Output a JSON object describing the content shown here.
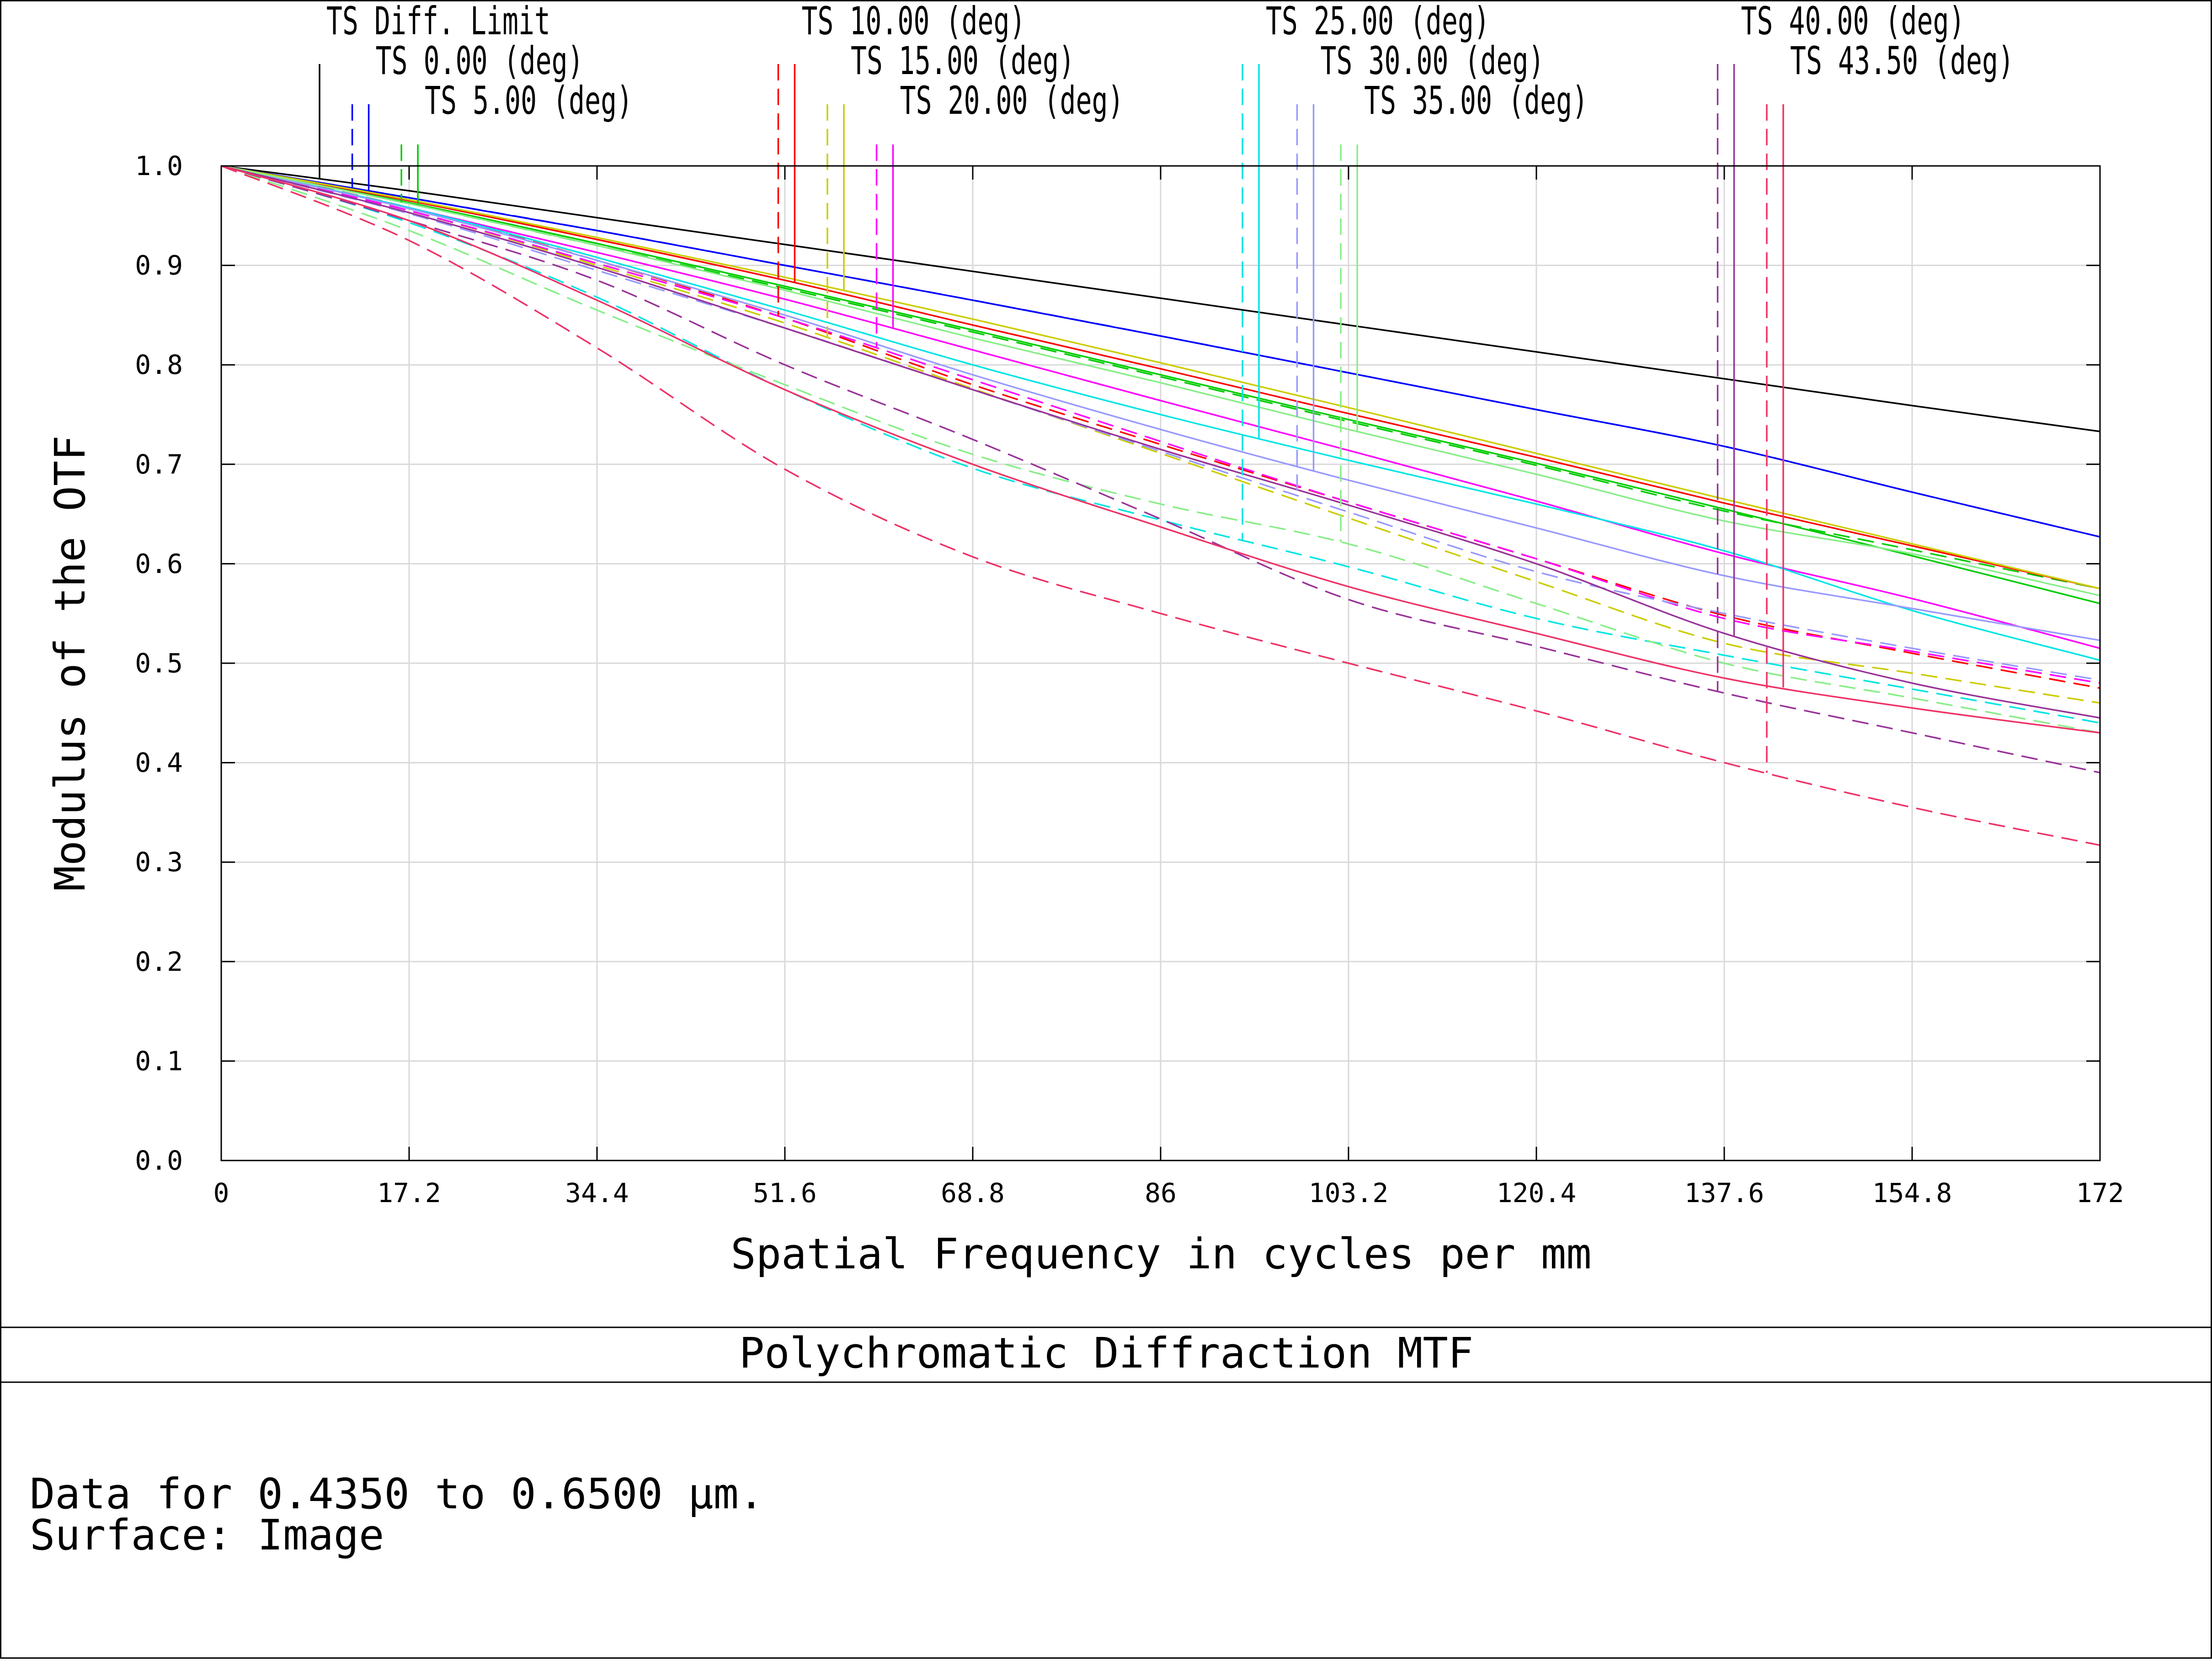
{
  "chart_data": {
    "type": "line",
    "title": "Polychromatic Diffraction MTF",
    "xlabel": "Spatial Frequency in cycles per mm",
    "ylabel": "Modulus of the OTF",
    "xlim": [
      0,
      172
    ],
    "ylim": [
      0,
      1.0
    ],
    "xticks": [
      "0",
      "17.2",
      "34.4",
      "51.6",
      "68.8",
      "86",
      "103.2",
      "120.4",
      "137.6",
      "154.8",
      "172"
    ],
    "yticks": [
      "0.0",
      "0.1",
      "0.2",
      "0.3",
      "0.4",
      "0.5",
      "0.6",
      "0.7",
      "0.8",
      "0.9",
      "1.0"
    ],
    "grid": true,
    "legend_placement": "top",
    "info_lines": [
      "Data for 0.4350 to 0.6500 µm.",
      "Surface: Image"
    ],
    "x": [
      0,
      17.2,
      34.4,
      51.6,
      68.8,
      86,
      103.2,
      120.4,
      137.6,
      154.8,
      172
    ],
    "series": [
      {
        "name": "TS Diff. Limit",
        "color": "#000000",
        "marker_x": 9,
        "tangential": [
          1.0,
          0.975,
          0.948,
          0.921,
          0.894,
          0.867,
          0.84,
          0.813,
          0.786,
          0.759,
          0.733
        ],
        "sagittal": null
      },
      {
        "name": "TS 0.00 (deg)",
        "color": "#0000ff",
        "marker_x": 13.5,
        "tangential": [
          1.0,
          0.968,
          0.935,
          0.9,
          0.865,
          0.829,
          0.792,
          0.755,
          0.718,
          0.672,
          0.627
        ],
        "sagittal": [
          1.0,
          0.968,
          0.935,
          0.9,
          0.865,
          0.829,
          0.792,
          0.755,
          0.718,
          0.672,
          0.627
        ]
      },
      {
        "name": "TS 5.00 (deg)",
        "color": "#00cc00",
        "marker_x": 18,
        "tangential": [
          1.0,
          0.963,
          0.922,
          0.879,
          0.835,
          0.79,
          0.745,
          0.701,
          0.655,
          0.608,
          0.56
        ],
        "sagittal": [
          1.0,
          0.962,
          0.92,
          0.877,
          0.833,
          0.788,
          0.743,
          0.699,
          0.653,
          0.614,
          0.575
        ]
      },
      {
        "name": "TS 10.00 (deg)",
        "color": "#ff0000",
        "marker_x": 52.5,
        "tangential": [
          1.0,
          0.965,
          0.926,
          0.885,
          0.84,
          0.796,
          0.751,
          0.707,
          0.661,
          0.618,
          0.575
        ],
        "sagittal": [
          1.0,
          0.958,
          0.905,
          0.847,
          0.78,
          0.72,
          0.662,
          0.605,
          0.548,
          0.51,
          0.475
        ]
      },
      {
        "name": "TS 15.00 (deg)",
        "color": "#cccc00",
        "marker_x": 57,
        "tangential": [
          1.0,
          0.966,
          0.928,
          0.888,
          0.846,
          0.802,
          0.757,
          0.711,
          0.665,
          0.62,
          0.575
        ],
        "sagittal": [
          1.0,
          0.955,
          0.9,
          0.842,
          0.776,
          0.711,
          0.646,
          0.582,
          0.52,
          0.49,
          0.46
        ]
      },
      {
        "name": "TS 20.00 (deg)",
        "color": "#ff00ff",
        "marker_x": 61.5,
        "tangential": [
          1.0,
          0.958,
          0.913,
          0.866,
          0.815,
          0.764,
          0.714,
          0.663,
          0.61,
          0.565,
          0.515
        ],
        "sagittal": [
          1.0,
          0.955,
          0.902,
          0.847,
          0.785,
          0.723,
          0.662,
          0.605,
          0.545,
          0.512,
          0.48
        ]
      },
      {
        "name": "TS 25.00 (deg)",
        "color": "#00e5e5",
        "marker_x": 95,
        "tangential": [
          1.0,
          0.958,
          0.908,
          0.855,
          0.8,
          0.75,
          0.704,
          0.66,
          0.613,
          0.553,
          0.503
        ],
        "sagittal": [
          1.0,
          0.943,
          0.868,
          0.775,
          0.696,
          0.644,
          0.597,
          0.545,
          0.508,
          0.474,
          0.44
        ]
      },
      {
        "name": "TS 30.00 (deg)",
        "color": "#9999ff",
        "marker_x": 100,
        "tangential": [
          1.0,
          0.957,
          0.905,
          0.85,
          0.79,
          0.735,
          0.684,
          0.636,
          0.588,
          0.555,
          0.523
        ],
        "sagittal": [
          1.0,
          0.952,
          0.895,
          0.837,
          0.775,
          0.713,
          0.652,
          0.592,
          0.55,
          0.515,
          0.483
        ]
      },
      {
        "name": "TS 35.00 (deg)",
        "color": "#88ee88",
        "marker_x": 104,
        "tangential": [
          1.0,
          0.962,
          0.92,
          0.875,
          0.827,
          0.782,
          0.735,
          0.69,
          0.643,
          0.61,
          0.568
        ],
        "sagittal": [
          1.0,
          0.935,
          0.855,
          0.78,
          0.71,
          0.66,
          0.62,
          0.56,
          0.5,
          0.465,
          0.43
        ]
      },
      {
        "name": "TS 40.00 (deg)",
        "color": "#993399",
        "marker_x": 138.5,
        "tangential": [
          1.0,
          0.953,
          0.898,
          0.837,
          0.775,
          0.715,
          0.659,
          0.6,
          0.53,
          0.48,
          0.445
        ],
        "sagittal": [
          1.0,
          0.945,
          0.885,
          0.8,
          0.725,
          0.645,
          0.564,
          0.517,
          0.47,
          0.43,
          0.39
        ]
      },
      {
        "name": "TS 43.50 (deg)",
        "color": "#ee3366",
        "marker_x": 143,
        "tangential": [
          1.0,
          0.945,
          0.865,
          0.775,
          0.7,
          0.637,
          0.577,
          0.53,
          0.485,
          0.455,
          0.43
        ],
        "sagittal": [
          1.0,
          0.925,
          0.817,
          0.695,
          0.607,
          0.55,
          0.5,
          0.452,
          0.4,
          0.355,
          0.317
        ]
      }
    ]
  }
}
